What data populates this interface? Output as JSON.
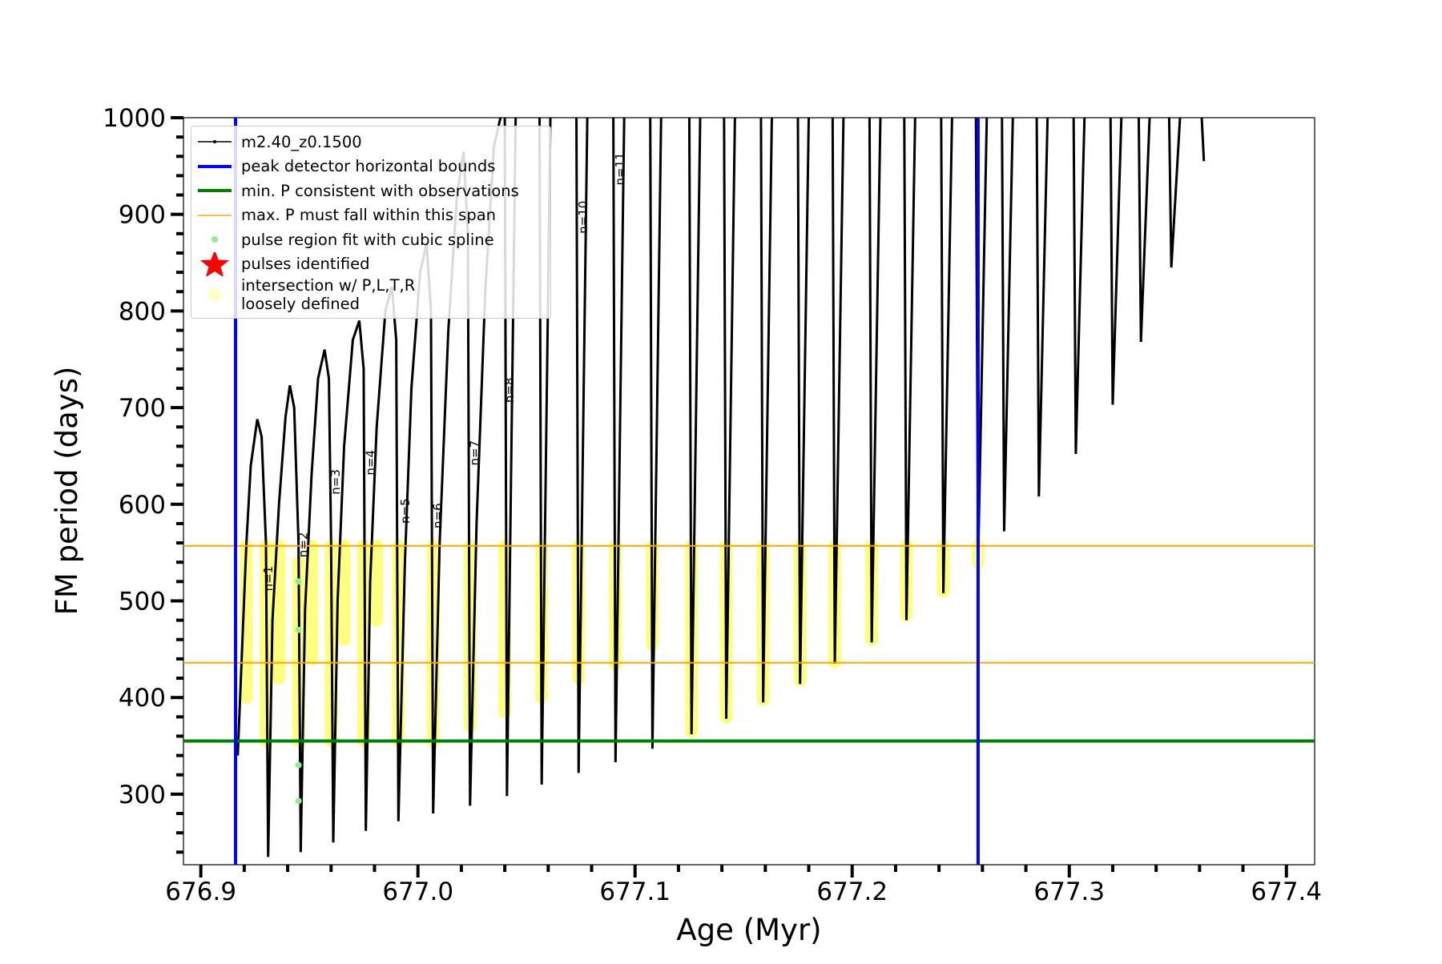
{
  "chart_data": {
    "type": "line",
    "xlabel": "Age (Myr)",
    "ylabel": "FM period (days)",
    "xlim": [
      676.892,
      677.413
    ],
    "ylim": [
      227,
      1000
    ],
    "xticks": [
      676.9,
      {
        "value": 677.0,
        "label": "677.0"
      },
      677.1,
      677.2,
      677.3,
      677.4
    ],
    "yticks": [
      300,
      400,
      500,
      600,
      700,
      800,
      900,
      1000
    ],
    "xminor": [
      676.92,
      676.94,
      676.96,
      676.98,
      677.02,
      677.04,
      677.06,
      677.08,
      677.12,
      677.14,
      677.16,
      677.18,
      677.22,
      677.24,
      677.26,
      677.28,
      677.32,
      677.34,
      677.36,
      677.38
    ],
    "yminor": [
      240,
      260,
      280,
      320,
      340,
      360,
      380,
      420,
      440,
      460,
      480,
      520,
      540,
      560,
      580,
      620,
      640,
      660,
      680,
      720,
      740,
      760,
      780,
      820,
      840,
      860,
      880,
      920,
      940,
      960,
      980
    ],
    "legend": "upper left",
    "series": [
      {
        "name": "m2.40_z0.1500",
        "kind": "line",
        "color": "#000000",
        "x": [
          676.917,
          676.919,
          676.921,
          676.923,
          676.926,
          676.928,
          676.93,
          676.931,
          676.933,
          676.936,
          676.939,
          676.941,
          676.943,
          676.945,
          676.946,
          676.948,
          676.951,
          676.954,
          676.957,
          676.959,
          676.96,
          676.961,
          676.963,
          676.966,
          676.97,
          676.973,
          676.975,
          676.976,
          676.978,
          676.981,
          676.985,
          676.988,
          676.99,
          676.991,
          676.994,
          676.997,
          677.001,
          677.004,
          677.006,
          677.007,
          677.01,
          677.014,
          677.018,
          677.021,
          677.023,
          677.024,
          677.027,
          677.031,
          677.035,
          677.038,
          null,
          677.04,
          677.041,
          677.045,
          null,
          677.056,
          677.057,
          677.061,
          null,
          677.073,
          677.074,
          677.078,
          null,
          677.09,
          677.091,
          677.095,
          null,
          677.107,
          677.108,
          677.112,
          null,
          677.125,
          677.126,
          677.13,
          null,
          677.141,
          677.142,
          677.146,
          null,
          677.158,
          677.159,
          677.163,
          null,
          677.175,
          677.176,
          677.18,
          null,
          677.191,
          677.192,
          677.196,
          null,
          677.208,
          677.209,
          677.213,
          null,
          677.224,
          677.225,
          677.229,
          null,
          677.241,
          677.242,
          677.246,
          null,
          677.257,
          677.258,
          677.262,
          null,
          677.269,
          677.27,
          677.274,
          null,
          677.285,
          677.286,
          677.29,
          null,
          677.302,
          677.303,
          677.307,
          null,
          677.319,
          677.32,
          677.324,
          null,
          677.332,
          677.333,
          677.337,
          null,
          677.346,
          677.347,
          677.351,
          null,
          677.361,
          677.362
        ],
        "values": [
          340,
          450,
          560,
          640,
          688,
          670,
          560,
          235,
          480,
          600,
          690,
          723,
          700,
          560,
          240,
          490,
          630,
          730,
          760,
          730,
          560,
          250,
          500,
          660,
          770,
          790,
          740,
          262,
          520,
          680,
          800,
          825,
          770,
          272,
          540,
          720,
          840,
          870,
          800,
          280,
          560,
          780,
          920,
          965,
          880,
          288,
          580,
          820,
          970,
          1000,
          null,
          1000,
          298,
          1000,
          null,
          1000,
          310,
          1000,
          null,
          1000,
          322,
          1000,
          null,
          1000,
          333,
          1000,
          null,
          1000,
          347,
          1000,
          null,
          1000,
          362,
          1000,
          null,
          1000,
          378,
          1000,
          null,
          1000,
          395,
          1000,
          null,
          1000,
          414,
          1000,
          null,
          1000,
          435,
          1000,
          null,
          1000,
          457,
          1000,
          null,
          1000,
          480,
          1000,
          null,
          1000,
          508,
          1000,
          null,
          1000,
          540,
          1000,
          null,
          1000,
          572,
          1000,
          null,
          1000,
          608,
          1000,
          null,
          1000,
          652,
          1000,
          null,
          1000,
          703,
          1000,
          null,
          1000,
          768,
          1000,
          null,
          1000,
          845,
          1000,
          null,
          1000,
          955
        ]
      },
      {
        "name": "peak detector horizontal bounds",
        "kind": "vline",
        "color": "#0000ff",
        "x": [
          676.916,
          677.258
        ]
      },
      {
        "name": "min. P consistent with observations",
        "kind": "hline",
        "color": "#008000",
        "values": [
          355
        ]
      },
      {
        "name": "max. P must fall within this span",
        "kind": "hline",
        "color": "#ffa500",
        "values": [
          557,
          436
        ]
      },
      {
        "name": "pulse region fit with cubic spline",
        "kind": "scatter",
        "color": "#90ee90",
        "x": [
          676.945,
          676.945,
          676.945,
          676.945
        ],
        "values": [
          330,
          293,
          470,
          520
        ]
      },
      {
        "name": "pulses identified",
        "kind": "star",
        "color": "#ff0000",
        "x": [],
        "values": []
      },
      {
        "name": "intersection w/ P,L,T,R\nloosely defined",
        "kind": "span",
        "color": "#ffff55",
        "x": [
          676.921,
          676.93,
          676.936,
          676.945,
          676.951,
          676.96,
          676.966,
          676.975,
          676.981,
          676.991,
          677.007,
          677.024,
          677.04,
          677.057,
          677.074,
          677.091,
          677.108,
          677.126,
          677.142,
          677.159,
          677.176,
          677.192,
          677.209,
          677.225,
          677.242,
          677.258
        ],
        "ymin": [
          400,
          355,
          420,
          355,
          440,
          355,
          460,
          355,
          480,
          355,
          355,
          370,
          385,
          400,
          420,
          435,
          455,
          365,
          380,
          398,
          418,
          437,
          460,
          485,
          510,
          540
        ],
        "ymax": [
          557,
          557,
          557,
          540,
          557,
          557,
          557,
          557,
          557,
          557,
          557,
          557,
          557,
          557,
          557,
          557,
          557,
          557,
          557,
          557,
          557,
          557,
          557,
          557,
          557,
          557
        ]
      }
    ],
    "annotations": [
      {
        "text": "n=1",
        "x": 676.933,
        "y": 510
      },
      {
        "text": "n=2",
        "x": 676.949,
        "y": 545
      },
      {
        "text": "n=3",
        "x": 676.964,
        "y": 610
      },
      {
        "text": "n=4",
        "x": 676.98,
        "y": 630
      },
      {
        "text": "n=5",
        "x": 676.996,
        "y": 580
      },
      {
        "text": "n=6",
        "x": 677.011,
        "y": 575
      },
      {
        "text": "n=7",
        "x": 677.028,
        "y": 640
      },
      {
        "text": "n=8",
        "x": 677.044,
        "y": 705
      },
      {
        "text": "n=10",
        "x": 677.078,
        "y": 880
      },
      {
        "text": "n=11",
        "x": 677.095,
        "y": 930
      }
    ]
  }
}
